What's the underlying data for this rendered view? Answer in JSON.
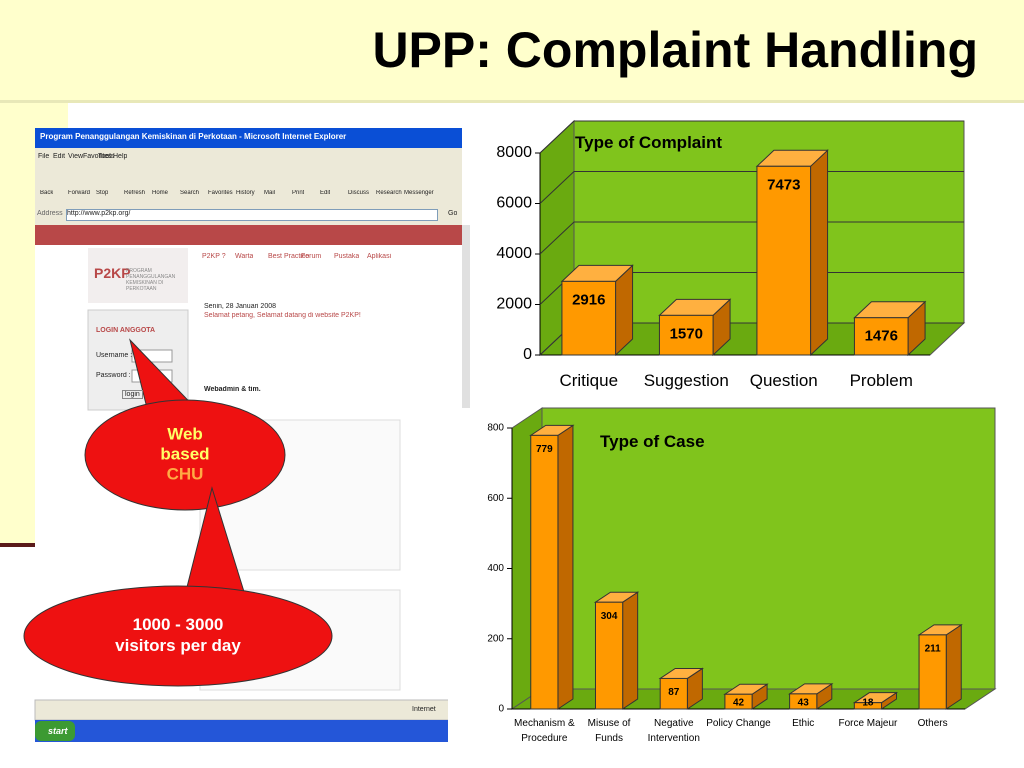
{
  "slide": {
    "title": "UPP: Complaint Handling",
    "callouts": [
      {
        "lines": [
          "Web",
          "based",
          "CHU"
        ]
      },
      {
        "lines": [
          "1000 - 3000",
          "visitors per day"
        ]
      }
    ]
  },
  "browser": {
    "window_title": "Program Penanggulangan Kemiskinan di Perkotaan - Microsoft Internet Explorer",
    "menu": [
      "File",
      "Edit",
      "View",
      "Favorites",
      "Tools",
      "Help"
    ],
    "toolbar": [
      "Back",
      "Forward",
      "Stop",
      "Refresh",
      "Home",
      "Search",
      "Favorites",
      "History",
      "Mail",
      "Print",
      "Edit",
      "Discuss",
      "Research",
      "Messenger"
    ],
    "address_label": "Address",
    "address": "http://www.p2kp.org/",
    "go": "Go",
    "logo": "P2KP",
    "logo_caption": "PROGRAM PENANGGULANGAN KEMISKINAN DI PERKOTAAN",
    "nav": [
      "P2KP ?",
      "Warta",
      "Best Practice",
      "Forum",
      "Pustaka",
      "Aplikasi"
    ],
    "date": "Senin, 28 Januari 2008",
    "greeting": "Selamat petang, Selamat datang di website P2KP!",
    "signature": "Webadmin & tim.",
    "login_title": "LOGIN ANGGOTA",
    "username": "Username :",
    "password": "Password :",
    "login_button": "login",
    "status": "Internet",
    "start": "start"
  },
  "chart_data": [
    {
      "type": "bar",
      "title": "Type of Complaint",
      "categories": [
        "Critique",
        "Suggestion",
        "Question",
        "Problem"
      ],
      "values": [
        2916,
        1570,
        7473,
        1476
      ],
      "color": "#ff9900",
      "ylim": [
        0,
        8000
      ],
      "yticks": [
        0,
        2000,
        4000,
        6000,
        8000
      ],
      "grid": true
    },
    {
      "type": "bar",
      "title": "Type of Case",
      "categories": [
        "Mechanism & Procedure",
        "Misuse of Funds",
        "Negative Intervention",
        "Policy Change",
        "Ethic",
        "Force Majeur",
        "Others"
      ],
      "values": [
        779,
        304,
        87,
        42,
        43,
        18,
        211
      ],
      "color": "#ff9900",
      "ylim": [
        0,
        800
      ],
      "yticks": [
        0,
        200,
        400,
        600,
        800
      ],
      "grid": false
    }
  ]
}
